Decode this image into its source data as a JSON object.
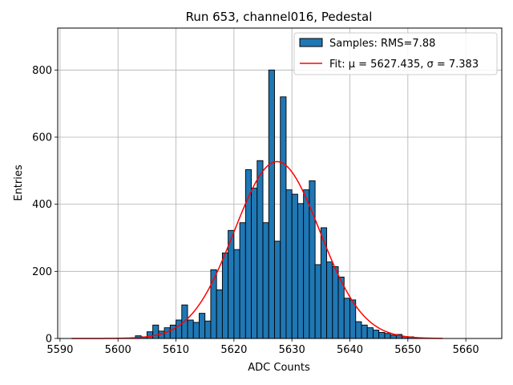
{
  "chart_data": {
    "type": "bar",
    "title": "Run 653, channel016, Pedestal",
    "xlabel": "ADC Counts",
    "ylabel": "Entries",
    "xlim": [
      5589.6,
      5666.2
    ],
    "ylim": [
      0,
      925
    ],
    "xticks": [
      5590,
      5600,
      5610,
      5620,
      5630,
      5640,
      5650,
      5660
    ],
    "yticks": [
      0,
      200,
      400,
      600,
      800
    ],
    "grid": true,
    "legend_position": "top-right",
    "histogram": {
      "name": "Samples: RMS=7.88",
      "color": "#1f77b4",
      "edge_color": "#000000",
      "bin_start": 5592,
      "bin_width": 1,
      "counts": [
        0,
        0,
        0,
        0,
        0,
        0,
        0,
        0,
        0,
        0,
        0,
        8,
        5,
        20,
        40,
        22,
        32,
        40,
        55,
        100,
        55,
        48,
        75,
        52,
        205,
        145,
        255,
        322,
        265,
        345,
        503,
        448,
        530,
        345,
        800,
        290,
        720,
        443,
        430,
        402,
        443,
        470,
        220,
        330,
        228,
        214,
        183,
        120,
        115,
        50,
        40,
        32,
        25,
        18,
        15,
        10,
        12,
        6,
        5,
        0,
        0,
        0,
        0,
        0,
        0,
        0,
        0,
        0,
        0,
        0,
        0
      ]
    },
    "fit": {
      "name": "Fit: μ = 5627.435, σ = 7.383",
      "color": "#ff0000",
      "mu": 5627.435,
      "sigma": 7.383,
      "amplitude": 527,
      "x_range": [
        5592,
        5656
      ]
    }
  }
}
